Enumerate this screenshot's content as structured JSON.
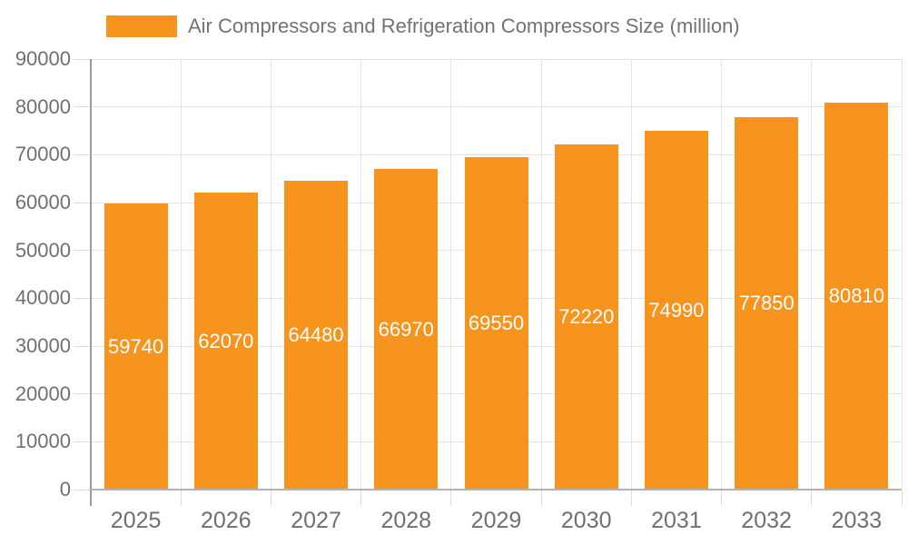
{
  "legend": {
    "swatch_color": "#f7941e",
    "label": "Air Compressors and Refrigeration Compressors Size (million)"
  },
  "chart_data": {
    "type": "bar",
    "title": "Air Compressors and Refrigeration Compressors Size (million)",
    "categories": [
      "2025",
      "2026",
      "2027",
      "2028",
      "2029",
      "2030",
      "2031",
      "2032",
      "2033"
    ],
    "values": [
      59740,
      62070,
      64480,
      66970,
      69550,
      72220,
      74990,
      77850,
      80810
    ],
    "value_labels": [
      "59740",
      "62070",
      "64480",
      "66970",
      "69550",
      "72220",
      "74990",
      "77850",
      "80810"
    ],
    "ytick_labels": [
      "0",
      "10000",
      "20000",
      "30000",
      "40000",
      "50000",
      "60000",
      "70000",
      "80000",
      "90000"
    ],
    "xlabel": "",
    "ylabel": "",
    "ylim": [
      0,
      90000
    ],
    "ytick_step": 10000,
    "grid": true,
    "legend_position": "top",
    "bar_color": "#f7941e",
    "value_label_color": "#ffffff"
  },
  "colors": {
    "background": "#ffffff",
    "bar": "#f7941e",
    "grid_line": "#e4e4e4",
    "tick_line": "#dcdcdc",
    "y_axis_line": "#9c9c9c",
    "x_axis_line": "#b2b2b2",
    "axis_text": "#707070",
    "legend_text": "#737373",
    "bar_label_text": "#ffffff"
  }
}
